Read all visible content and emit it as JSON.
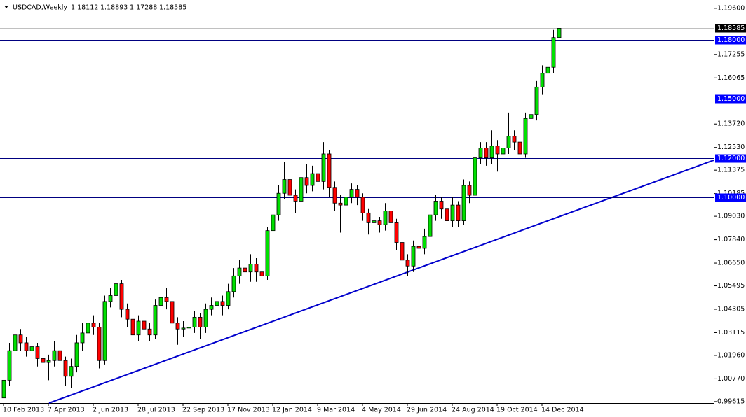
{
  "chart_data": {
    "type": "candlestick",
    "symbol": "USDCAD,Weekly",
    "categories": [
      "10 Feb 2013",
      null,
      null,
      null,
      null,
      null,
      null,
      null,
      "7 Apr 2013",
      null,
      null,
      null,
      null,
      null,
      null,
      null,
      "2 Jun 2013",
      null,
      null,
      null,
      null,
      null,
      null,
      null,
      "28 Jul 2013",
      null,
      null,
      null,
      null,
      null,
      null,
      null,
      "22 Sep 2013",
      null,
      null,
      null,
      null,
      null,
      null,
      null,
      "17 Nov 2013",
      null,
      null,
      null,
      null,
      null,
      null,
      null,
      "12 Jan 2014",
      null,
      null,
      null,
      null,
      null,
      null,
      null,
      "9 Mar 2014",
      null,
      null,
      null,
      null,
      null,
      null,
      null,
      "4 May 2014",
      null,
      null,
      null,
      null,
      null,
      null,
      null,
      "29 Jun 2014",
      null,
      null,
      null,
      null,
      null,
      null,
      null,
      "24 Aug 2014",
      null,
      null,
      null,
      null,
      null,
      null,
      null,
      "19 Oct 2014",
      null,
      null,
      null,
      null,
      null,
      null,
      null,
      "14 Dec 2014",
      null,
      null,
      null
    ],
    "open": [
      0.998,
      1.007,
      1.022,
      1.03,
      1.026,
      1.022,
      1.024,
      1.018,
      1.016,
      1.017,
      1.022,
      1.017,
      1.009,
      1.014,
      1.026,
      1.031,
      1.036,
      1.034,
      1.017,
      1.047,
      1.05,
      1.056,
      1.043,
      1.038,
      1.03,
      1.037,
      1.033,
      1.03,
      1.045,
      1.049,
      1.047,
      1.036,
      1.033,
      1.0335,
      1.034,
      1.039,
      1.034,
      1.043,
      1.045,
      1.047,
      1.045,
      1.052,
      1.06,
      1.064,
      1.062,
      1.066,
      1.062,
      1.06,
      1.083,
      1.091,
      1.102,
      1.109,
      1.101,
      1.098,
      1.11,
      1.106,
      1.112,
      1.108,
      1.122,
      1.105,
      1.097,
      1.096,
      1.1,
      1.104,
      1.1,
      1.092,
      1.087,
      1.088,
      1.086,
      1.093,
      1.087,
      1.077,
      1.068,
      1.065,
      1.075,
      1.074,
      1.08,
      1.091,
      1.098,
      1.094,
      1.088,
      1.096,
      1.088,
      1.106,
      1.101,
      1.12,
      1.125,
      1.12,
      1.126,
      1.122,
      1.125,
      1.131,
      1.128,
      1.122,
      1.14,
      1.142,
      1.156,
      1.163,
      1.166,
      1.18112
    ],
    "high": [
      1.011,
      1.026,
      1.034,
      1.033,
      1.029,
      1.027,
      1.026,
      1.021,
      1.02,
      1.027,
      1.024,
      1.019,
      1.018,
      1.03,
      1.036,
      1.042,
      1.04,
      1.036,
      1.05,
      1.054,
      1.06,
      1.058,
      1.046,
      1.041,
      1.04,
      1.04,
      1.036,
      1.048,
      1.055,
      1.054,
      1.049,
      1.039,
      1.037,
      1.038,
      1.042,
      1.041,
      1.046,
      1.049,
      1.05,
      1.05,
      1.056,
      1.064,
      1.068,
      1.068,
      1.071,
      1.069,
      1.068,
      1.085,
      1.095,
      1.106,
      1.118,
      1.122,
      1.104,
      1.115,
      1.117,
      1.116,
      1.117,
      1.128,
      1.124,
      1.108,
      1.101,
      1.104,
      1.107,
      1.106,
      1.102,
      1.094,
      1.092,
      1.09,
      1.097,
      1.095,
      1.089,
      1.079,
      1.071,
      1.078,
      1.079,
      1.084,
      1.094,
      1.101,
      1.1,
      1.097,
      1.1,
      1.098,
      1.109,
      1.108,
      1.123,
      1.128,
      1.128,
      1.134,
      1.129,
      1.137,
      1.143,
      1.134,
      1.13,
      1.143,
      1.146,
      1.159,
      1.167,
      1.17,
      1.185,
      1.18893
    ],
    "low": [
      0.996,
      1.004,
      1.019,
      1.022,
      1.019,
      1.019,
      1.014,
      1.012,
      1.007,
      1.014,
      1.013,
      1.004,
      1.003,
      1.011,
      1.022,
      1.028,
      1.03,
      1.013,
      1.015,
      1.044,
      1.047,
      1.039,
      1.034,
      1.026,
      1.027,
      1.029,
      1.027,
      1.028,
      1.042,
      1.043,
      1.032,
      1.025,
      1.029,
      1.03,
      1.031,
      1.028,
      1.031,
      1.04,
      1.041,
      1.04,
      1.043,
      1.049,
      1.056,
      1.055,
      1.057,
      1.057,
      1.057,
      1.058,
      1.08,
      1.088,
      1.099,
      1.097,
      1.092,
      1.094,
      1.102,
      1.103,
      1.104,
      1.104,
      1.1,
      1.093,
      1.082,
      1.093,
      1.097,
      1.096,
      1.088,
      1.081,
      1.084,
      1.082,
      1.083,
      1.083,
      1.073,
      1.064,
      1.06,
      1.062,
      1.07,
      1.071,
      1.078,
      1.088,
      1.089,
      1.083,
      1.085,
      1.085,
      1.086,
      1.097,
      1.099,
      1.117,
      1.116,
      1.117,
      1.113,
      1.119,
      1.122,
      1.124,
      1.119,
      1.12,
      1.137,
      1.139,
      1.152,
      1.157,
      1.163,
      1.17288
    ],
    "close": [
      1.007,
      1.022,
      1.03,
      1.026,
      1.022,
      1.024,
      1.018,
      1.016,
      1.017,
      1.022,
      1.017,
      1.009,
      1.014,
      1.026,
      1.031,
      1.036,
      1.034,
      1.017,
      1.047,
      1.05,
      1.056,
      1.043,
      1.038,
      1.03,
      1.037,
      1.033,
      1.03,
      1.045,
      1.049,
      1.047,
      1.036,
      1.033,
      1.0335,
      1.034,
      1.039,
      1.034,
      1.043,
      1.045,
      1.047,
      1.045,
      1.052,
      1.06,
      1.064,
      1.062,
      1.066,
      1.062,
      1.06,
      1.083,
      1.091,
      1.102,
      1.109,
      1.101,
      1.098,
      1.11,
      1.106,
      1.112,
      1.108,
      1.122,
      1.105,
      1.097,
      1.096,
      1.1,
      1.104,
      1.1,
      1.092,
      1.087,
      1.088,
      1.086,
      1.093,
      1.087,
      1.077,
      1.068,
      1.065,
      1.075,
      1.074,
      1.08,
      1.091,
      1.098,
      1.094,
      1.088,
      1.096,
      1.088,
      1.106,
      1.101,
      1.12,
      1.125,
      1.12,
      1.126,
      1.122,
      1.125,
      1.131,
      1.128,
      1.122,
      1.14,
      1.142,
      1.156,
      1.163,
      1.166,
      1.18112,
      1.18585
    ],
    "up_color": "#00e000",
    "down_color": "#ff0000",
    "levels": [
      {
        "value": 1.18,
        "label": "1.18000"
      },
      {
        "value": 1.15,
        "label": "1.15000"
      },
      {
        "value": 1.12,
        "label": "1.12000"
      },
      {
        "value": 1.1,
        "label": "1.10000"
      }
    ],
    "level_color": "#000080",
    "ylim": [
      0.9954,
      1.1988
    ],
    "yticks": [
      {
        "value": 1.196,
        "label": "1.19600"
      },
      {
        "value": 1.17255,
        "label": "1.17255"
      },
      {
        "value": 1.16065,
        "label": "1.16065"
      },
      {
        "value": 1.1372,
        "label": "1.13720"
      },
      {
        "value": 1.1253,
        "label": "1.12530"
      },
      {
        "value": 1.11375,
        "label": "1.11375"
      },
      {
        "value": 1.10185,
        "label": "1.10185"
      },
      {
        "value": 1.0903,
        "label": "1.09030"
      },
      {
        "value": 1.0784,
        "label": "1.07840"
      },
      {
        "value": 1.0665,
        "label": "1.06650"
      },
      {
        "value": 1.05495,
        "label": "1.05495"
      },
      {
        "value": 1.04305,
        "label": "1.04305"
      },
      {
        "value": 1.03115,
        "label": "1.03115"
      },
      {
        "value": 1.0196,
        "label": "1.01960"
      },
      {
        "value": 1.0077,
        "label": "1.00770"
      },
      {
        "value": 0.99615,
        "label": "0.99615"
      }
    ]
  }
}
